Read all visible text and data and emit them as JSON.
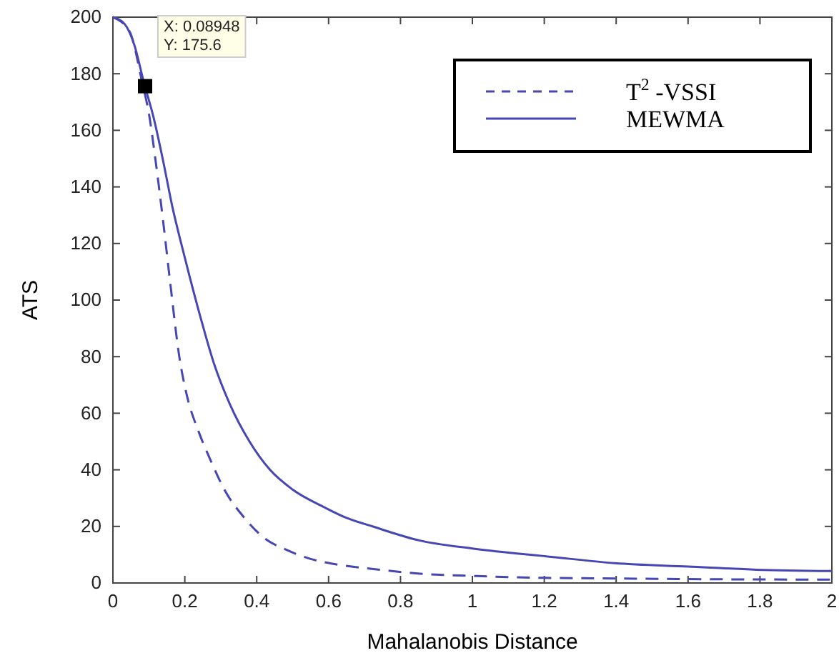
{
  "chart_data": {
    "type": "line",
    "xlabel": "Mahalanobis Distance",
    "ylabel": "ATS",
    "xlim": [
      0,
      2
    ],
    "ylim": [
      0,
      200
    ],
    "xticks": [
      0,
      0.2,
      0.4,
      0.6,
      0.8,
      1,
      1.2,
      1.4,
      1.6,
      1.8,
      2
    ],
    "yticks": [
      0,
      20,
      40,
      60,
      80,
      100,
      120,
      140,
      160,
      180,
      200
    ],
    "grid": false,
    "legend": "top right",
    "marker": "none",
    "series": [
      {
        "name": "T$^{2}$ -VSSI",
        "color": "#4646b4",
        "line_style": "dashed",
        "x": [
          0,
          0.046,
          0.083,
          0.1,
          0.119,
          0.139,
          0.159,
          0.185,
          0.205,
          0.24,
          0.272,
          0.31,
          0.364,
          0.42,
          0.483,
          0.55,
          0.616,
          0.72,
          0.854,
          1.0,
          1.12,
          1.4,
          1.7,
          2
        ],
        "values": [
          200,
          195,
          176,
          166,
          149,
          128.6,
          106.6,
          79.7,
          66.7,
          53,
          43.3,
          33,
          23.3,
          16,
          11.7,
          8.5,
          6.7,
          5,
          3.3,
          2.5,
          2,
          1.6,
          1.3,
          1.2
        ]
      },
      {
        "name": "MEWMA",
        "color": "#4646b4",
        "line_style": "solid",
        "x": [
          0,
          0.033,
          0.06,
          0.086,
          0.113,
          0.14,
          0.166,
          0.19,
          0.212,
          0.245,
          0.28,
          0.325,
          0.38,
          0.437,
          0.5,
          0.589,
          0.65,
          0.722,
          0.854,
          1.0,
          1.119,
          1.2,
          1.396,
          1.6,
          1.79,
          2
        ],
        "values": [
          200,
          197.5,
          190,
          177,
          164.6,
          149,
          132.6,
          120,
          109,
          93.3,
          78,
          63.3,
          50,
          40,
          33,
          26.7,
          23,
          20,
          15,
          12.2,
          10.5,
          9.5,
          7,
          5.8,
          4.7,
          4.2
        ]
      }
    ],
    "annotations": [
      {
        "text": "X: 0.08948\nY: 175.6",
        "x": 0.08948,
        "y": 175.6
      }
    ]
  }
}
